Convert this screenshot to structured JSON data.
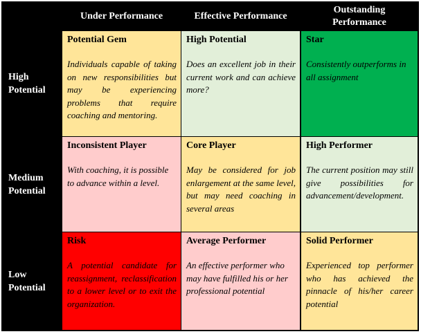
{
  "columns": [
    "Under Performance",
    "Effective Performance",
    "Outstanding Performance"
  ],
  "rows": [
    "High Potential",
    "Medium Potential",
    "Low Potential"
  ],
  "colors": {
    "yellow": "#FFE599",
    "light_green": "#E2EFD9",
    "green": "#00B050",
    "pink": "#FFCCCC",
    "red": "#FF0000",
    "header_bg": "#000000"
  },
  "cells": [
    [
      {
        "title": "Potential Gem",
        "desc": "Individuals capable of taking on new responsibilities but may be experiencing problems that require coaching and mentoring.",
        "color": "#FFE599"
      },
      {
        "title": "High Potential",
        "desc": "Does an excellent job in their current work and can achieve more?",
        "color": "#E2EFD9"
      },
      {
        "title": "Star",
        "desc": "Consistently outperforms in all assignment",
        "color": "#00B050"
      }
    ],
    [
      {
        "title": "Inconsistent Player",
        "desc": "With coaching, it is possible to advance within a level.",
        "color": "#FFCCCC"
      },
      {
        "title": "Core Player",
        "desc": "May be considered for job enlargement at the same level, but may need coaching in several areas",
        "color": "#FFE599"
      },
      {
        "title": "High Performer",
        "desc": "The current position may still give possibilities for advancement/development.",
        "color": "#E2EFD9"
      }
    ],
    [
      {
        "title": "Risk",
        "desc": "A potential candidate for reassignment, reclassification to a lower level or to exit the organization.",
        "color": "#FF0000"
      },
      {
        "title": "Average Performer",
        "desc": "An effective performer who may have fulfilled his or her professional potential",
        "color": "#FFCCCC"
      },
      {
        "title": "Solid Performer",
        "desc": "Experienced top performer who has achieved the pinnacle of his/her career potential",
        "color": "#FFE599"
      }
    ]
  ]
}
